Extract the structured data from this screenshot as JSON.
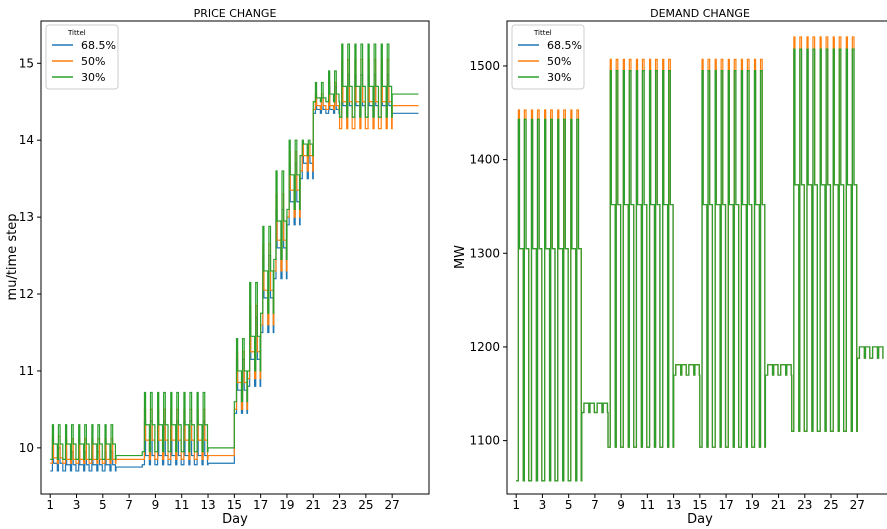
{
  "chart_data": [
    {
      "type": "line",
      "title": "PRICE CHANGE",
      "xlabel": "Day",
      "ylabel": "mu/time step",
      "xlim": [
        0.3,
        29.8
      ],
      "ylim": [
        9.4,
        15.55
      ],
      "xticks": [
        1,
        3,
        5,
        7,
        9,
        11,
        13,
        15,
        17,
        19,
        21,
        23,
        25,
        27
      ],
      "yticks": [
        10,
        11,
        12,
        13,
        14,
        15
      ],
      "legend": {
        "title": "Tittel",
        "position": "top-left"
      },
      "series": [
        {
          "name": "68.5%",
          "color": "#1f77b4",
          "daily": [
            [
              1,
              9.7,
              9.8,
              10.0
            ],
            [
              2,
              9.7,
              9.78,
              9.95
            ],
            [
              3,
              9.7,
              9.78,
              9.95
            ],
            [
              4,
              9.7,
              9.78,
              9.95
            ],
            [
              5,
              9.7,
              9.78,
              9.95
            ],
            [
              6,
              9.75,
              9.75,
              9.75
            ],
            [
              7,
              9.75,
              9.75,
              9.75
            ],
            [
              8,
              9.78,
              9.9,
              10.35
            ],
            [
              9,
              9.78,
              9.9,
              10.35
            ],
            [
              10,
              9.78,
              9.9,
              10.35
            ],
            [
              11,
              9.78,
              9.9,
              10.35
            ],
            [
              12,
              9.78,
              9.9,
              10.35
            ],
            [
              13,
              9.8,
              9.8,
              9.8
            ],
            [
              14,
              9.8,
              9.8,
              9.8
            ],
            [
              15,
              10.45,
              10.75,
              11.15
            ],
            [
              16,
              10.8,
              11.15,
              11.7
            ],
            [
              17,
              11.5,
              11.95,
              12.5
            ],
            [
              18,
              12.2,
              12.6,
              13.1
            ],
            [
              19,
              12.9,
              13.2,
              13.7
            ],
            [
              20,
              13.5,
              13.7,
              13.8
            ],
            [
              21,
              14.35,
              14.4,
              14.55
            ],
            [
              22,
              14.35,
              14.4,
              14.7
            ],
            [
              23,
              14.3,
              14.45,
              14.85
            ],
            [
              24,
              14.3,
              14.45,
              14.85
            ],
            [
              25,
              14.3,
              14.45,
              14.85
            ],
            [
              26,
              14.3,
              14.45,
              14.85
            ],
            [
              27,
              14.35,
              14.35,
              14.35
            ],
            [
              28,
              14.35,
              14.35,
              14.35
            ]
          ]
        },
        {
          "name": "50%",
          "color": "#ff7f0e",
          "daily": [
            [
              1,
              9.8,
              9.87,
              10.15
            ],
            [
              2,
              9.8,
              9.85,
              10.12
            ],
            [
              3,
              9.8,
              9.85,
              10.12
            ],
            [
              4,
              9.8,
              9.85,
              10.12
            ],
            [
              5,
              9.8,
              9.85,
              10.12
            ],
            [
              6,
              9.85,
              9.85,
              9.85
            ],
            [
              7,
              9.85,
              9.85,
              9.85
            ],
            [
              8,
              9.85,
              10.1,
              10.5
            ],
            [
              9,
              9.85,
              10.1,
              10.5
            ],
            [
              10,
              9.85,
              10.1,
              10.5
            ],
            [
              11,
              9.85,
              10.1,
              10.5
            ],
            [
              12,
              9.85,
              10.1,
              10.5
            ],
            [
              13,
              9.9,
              9.9,
              9.9
            ],
            [
              14,
              9.9,
              9.9,
              9.9
            ],
            [
              15,
              10.5,
              10.85,
              11.25
            ],
            [
              16,
              10.9,
              11.25,
              11.85
            ],
            [
              17,
              11.6,
              12.05,
              12.65
            ],
            [
              18,
              12.3,
              12.7,
              13.3
            ],
            [
              19,
              13.0,
              13.35,
              13.85
            ],
            [
              20,
              13.6,
              13.8,
              13.95
            ],
            [
              21,
              14.4,
              14.45,
              14.6
            ],
            [
              22,
              14.4,
              14.45,
              14.75
            ],
            [
              23,
              14.15,
              14.5,
              15.05
            ],
            [
              24,
              14.15,
              14.5,
              15.05
            ],
            [
              25,
              14.15,
              14.5,
              15.05
            ],
            [
              26,
              14.15,
              14.5,
              15.05
            ],
            [
              27,
              14.45,
              14.45,
              14.45
            ],
            [
              28,
              14.45,
              14.45,
              14.45
            ]
          ]
        },
        {
          "name": "30%",
          "color": "#2ca02c",
          "daily": [
            [
              1,
              9.85,
              10.05,
              10.3
            ],
            [
              2,
              9.85,
              10.05,
              10.3
            ],
            [
              3,
              9.85,
              10.05,
              10.3
            ],
            [
              4,
              9.85,
              10.05,
              10.3
            ],
            [
              5,
              9.85,
              10.05,
              10.3
            ],
            [
              6,
              9.9,
              9.9,
              9.9
            ],
            [
              7,
              9.9,
              9.9,
              9.9
            ],
            [
              8,
              9.95,
              10.3,
              10.72
            ],
            [
              9,
              9.95,
              10.3,
              10.72
            ],
            [
              10,
              9.95,
              10.3,
              10.72
            ],
            [
              11,
              9.95,
              10.3,
              10.72
            ],
            [
              12,
              9.95,
              10.3,
              10.72
            ],
            [
              13,
              10.0,
              10.0,
              10.0
            ],
            [
              14,
              10.0,
              10.0,
              10.0
            ],
            [
              15,
              10.6,
              11.0,
              11.42
            ],
            [
              16,
              11.0,
              11.45,
              12.15
            ],
            [
              17,
              11.75,
              12.3,
              12.88
            ],
            [
              18,
              12.45,
              12.95,
              13.6
            ],
            [
              19,
              13.1,
              13.55,
              14.0
            ],
            [
              20,
              13.8,
              13.95,
              14.0
            ],
            [
              21,
              14.5,
              14.55,
              14.75
            ],
            [
              22,
              14.5,
              14.6,
              14.9
            ],
            [
              23,
              14.3,
              14.7,
              15.25
            ],
            [
              24,
              14.3,
              14.7,
              15.25
            ],
            [
              25,
              14.3,
              14.7,
              15.25
            ],
            [
              26,
              14.3,
              14.7,
              15.25
            ],
            [
              27,
              14.6,
              14.6,
              14.6
            ],
            [
              28,
              14.6,
              14.6,
              14.6
            ]
          ]
        }
      ]
    },
    {
      "type": "line",
      "title": "DEMAND CHANGE",
      "xlabel": "Day",
      "ylabel": "MW",
      "xlim": [
        0.3,
        29.8
      ],
      "ylim": [
        1043,
        1548
      ],
      "xticks": [
        1,
        3,
        5,
        7,
        9,
        11,
        13,
        15,
        17,
        19,
        21,
        23,
        25,
        27
      ],
      "yticks": [
        1100,
        1200,
        1300,
        1400,
        1500
      ],
      "legend": {
        "title": "Tittel",
        "position": "top-left"
      },
      "series": [
        {
          "name": "68.5%",
          "color": "#1f77b4",
          "daily": [
            [
              1,
              1057,
              1305,
              1443
            ],
            [
              2,
              1057,
              1305,
              1443
            ],
            [
              3,
              1057,
              1305,
              1443
            ],
            [
              4,
              1057,
              1305,
              1443
            ],
            [
              5,
              1057,
              1305,
              1443
            ],
            [
              6,
              1130,
              1140,
              1140
            ],
            [
              7,
              1130,
              1140,
              1140
            ],
            [
              8,
              1093,
              1352,
              1495
            ],
            [
              9,
              1093,
              1352,
              1495
            ],
            [
              10,
              1093,
              1352,
              1495
            ],
            [
              11,
              1093,
              1352,
              1495
            ],
            [
              12,
              1093,
              1352,
              1495
            ],
            [
              13,
              1170,
              1181,
              1181
            ],
            [
              14,
              1170,
              1181,
              1181
            ],
            [
              15,
              1093,
              1352,
              1495
            ],
            [
              16,
              1093,
              1352,
              1495
            ],
            [
              17,
              1093,
              1352,
              1495
            ],
            [
              18,
              1093,
              1352,
              1495
            ],
            [
              19,
              1093,
              1352,
              1495
            ],
            [
              20,
              1170,
              1181,
              1181
            ],
            [
              21,
              1170,
              1181,
              1181
            ],
            [
              22,
              1110,
              1373,
              1518
            ],
            [
              23,
              1110,
              1373,
              1518
            ],
            [
              24,
              1110,
              1373,
              1518
            ],
            [
              25,
              1110,
              1373,
              1518
            ],
            [
              26,
              1110,
              1373,
              1518
            ],
            [
              27,
              1188,
              1200,
              1200
            ],
            [
              28,
              1188,
              1200,
              1200
            ]
          ]
        },
        {
          "name": "50%",
          "color": "#ff7f0e",
          "daily": [
            [
              1,
              1057,
              1305,
              1453
            ],
            [
              2,
              1057,
              1305,
              1453
            ],
            [
              3,
              1057,
              1305,
              1453
            ],
            [
              4,
              1057,
              1305,
              1453
            ],
            [
              5,
              1057,
              1305,
              1453
            ],
            [
              6,
              1130,
              1140,
              1140
            ],
            [
              7,
              1130,
              1140,
              1140
            ],
            [
              8,
              1093,
              1352,
              1507
            ],
            [
              9,
              1093,
              1352,
              1507
            ],
            [
              10,
              1093,
              1352,
              1507
            ],
            [
              11,
              1093,
              1352,
              1507
            ],
            [
              12,
              1093,
              1352,
              1507
            ],
            [
              13,
              1170,
              1181,
              1181
            ],
            [
              14,
              1170,
              1181,
              1181
            ],
            [
              15,
              1093,
              1352,
              1507
            ],
            [
              16,
              1093,
              1352,
              1507
            ],
            [
              17,
              1093,
              1352,
              1507
            ],
            [
              18,
              1093,
              1352,
              1507
            ],
            [
              19,
              1093,
              1352,
              1507
            ],
            [
              20,
              1170,
              1181,
              1181
            ],
            [
              21,
              1170,
              1181,
              1181
            ],
            [
              22,
              1110,
              1373,
              1531
            ],
            [
              23,
              1110,
              1373,
              1531
            ],
            [
              24,
              1110,
              1373,
              1531
            ],
            [
              25,
              1110,
              1373,
              1531
            ],
            [
              26,
              1110,
              1373,
              1531
            ],
            [
              27,
              1188,
              1200,
              1200
            ],
            [
              28,
              1188,
              1200,
              1200
            ]
          ]
        },
        {
          "name": "30%",
          "color": "#2ca02c",
          "daily": [
            [
              1,
              1057,
              1305,
              1443
            ],
            [
              2,
              1057,
              1305,
              1443
            ],
            [
              3,
              1057,
              1305,
              1443
            ],
            [
              4,
              1057,
              1305,
              1443
            ],
            [
              5,
              1057,
              1305,
              1443
            ],
            [
              6,
              1130,
              1140,
              1140
            ],
            [
              7,
              1130,
              1140,
              1140
            ],
            [
              8,
              1093,
              1352,
              1495
            ],
            [
              9,
              1093,
              1352,
              1495
            ],
            [
              10,
              1093,
              1352,
              1495
            ],
            [
              11,
              1093,
              1352,
              1495
            ],
            [
              12,
              1093,
              1352,
              1495
            ],
            [
              13,
              1170,
              1181,
              1181
            ],
            [
              14,
              1170,
              1181,
              1181
            ],
            [
              15,
              1093,
              1352,
              1495
            ],
            [
              16,
              1093,
              1352,
              1495
            ],
            [
              17,
              1093,
              1352,
              1495
            ],
            [
              18,
              1093,
              1352,
              1495
            ],
            [
              19,
              1093,
              1352,
              1495
            ],
            [
              20,
              1170,
              1181,
              1181
            ],
            [
              21,
              1170,
              1181,
              1181
            ],
            [
              22,
              1110,
              1373,
              1518
            ],
            [
              23,
              1110,
              1373,
              1518
            ],
            [
              24,
              1110,
              1373,
              1518
            ],
            [
              25,
              1110,
              1373,
              1518
            ],
            [
              26,
              1110,
              1373,
              1518
            ],
            [
              27,
              1188,
              1200,
              1200
            ],
            [
              28,
              1188,
              1200,
              1200
            ]
          ]
        }
      ]
    }
  ]
}
